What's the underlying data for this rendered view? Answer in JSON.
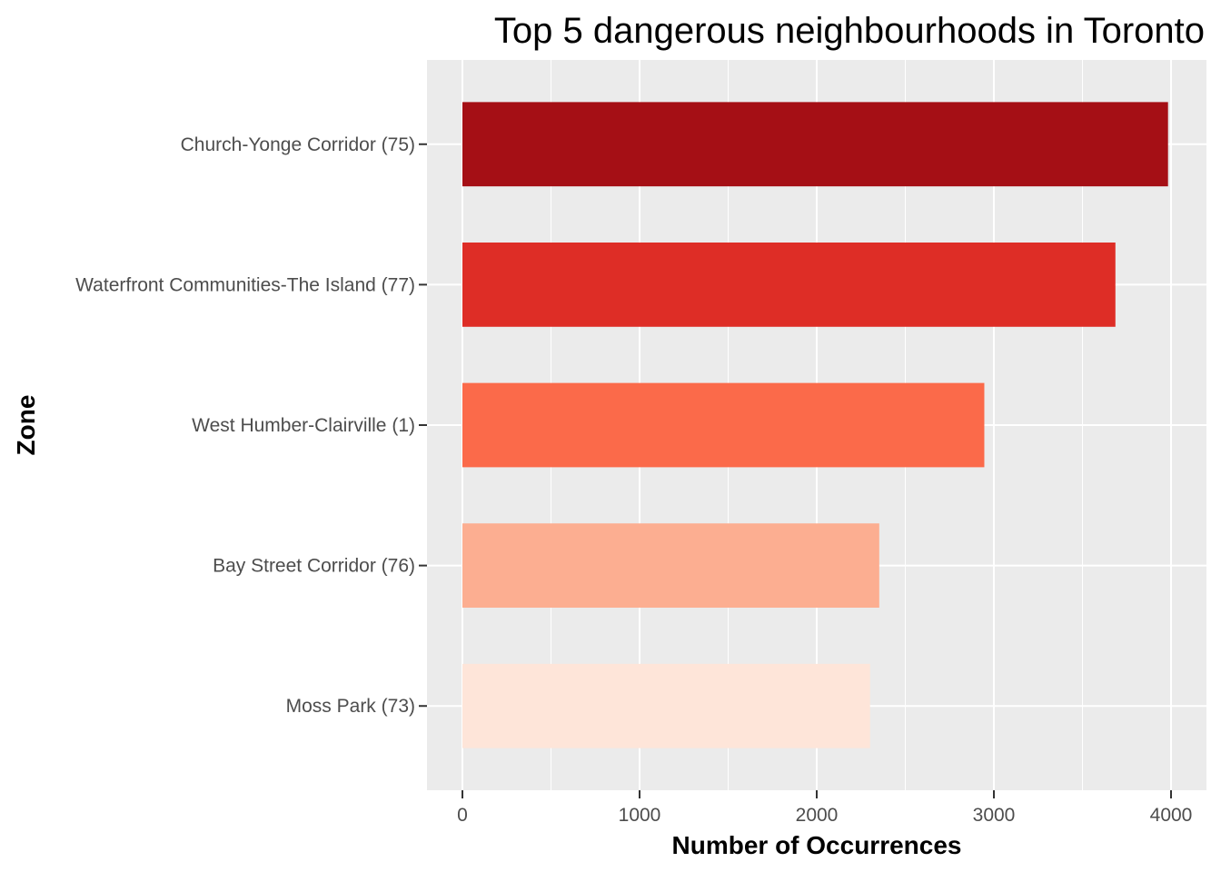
{
  "chart_data": {
    "type": "bar",
    "orientation": "horizontal",
    "title": "Top 5 dangerous neighbourhoods in Toronto",
    "xlabel": "Number of Occurrences",
    "ylabel": "Zone",
    "categories": [
      "Church-Yonge Corridor (75)",
      "Waterfront Communities-The Island (77)",
      "West Humber-Clairville (1)",
      "Bay Street Corridor (76)",
      "Moss Park (73)"
    ],
    "values": [
      3983,
      3686,
      2946,
      2353,
      2301
    ],
    "colors": [
      "#A50F15",
      "#DE2D26",
      "#FB6A4A",
      "#FCAE91",
      "#FEE5D9"
    ],
    "xlim": [
      -200,
      4200
    ],
    "xticks": [
      0,
      1000,
      2000,
      3000,
      4000
    ],
    "xtick_labels": [
      "0",
      "1000",
      "2000",
      "3000",
      "4000"
    ],
    "grid": true,
    "panel_background": "#EBEBEB",
    "grid_color": "#FFFFFF",
    "legend": "none"
  }
}
